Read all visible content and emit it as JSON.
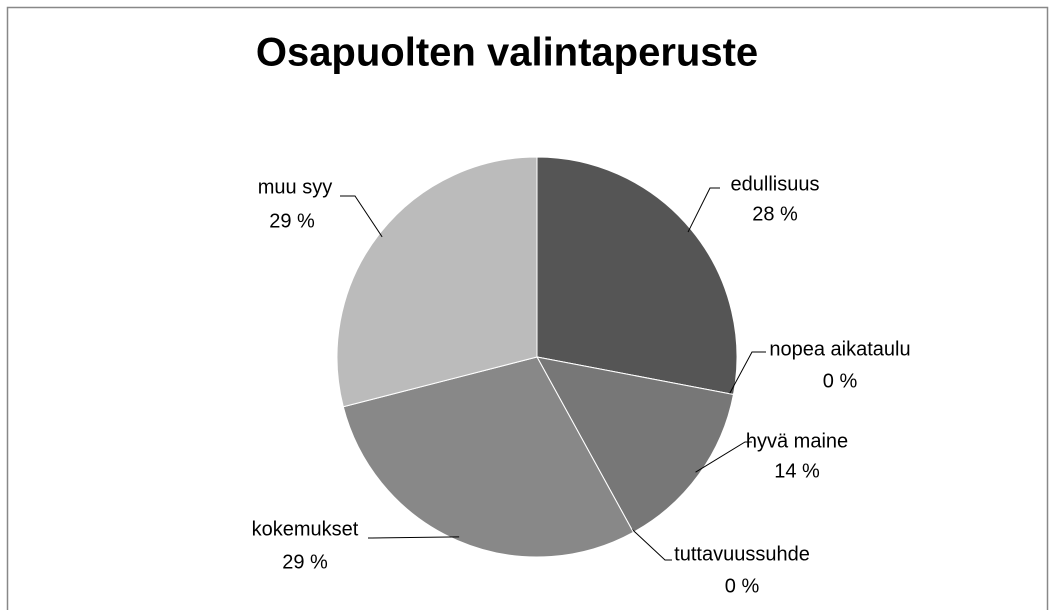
{
  "chart_data": {
    "type": "pie",
    "title": "Osapuolten valintaperuste",
    "categories": [
      "edullisuus",
      "nopea aikataulu",
      "hyvä maine",
      "tuttavuussuhde",
      "kokemukset",
      "muu syy"
    ],
    "values": [
      28,
      0,
      14,
      0,
      29,
      29
    ],
    "value_labels": [
      "28 %",
      "0 %",
      "14 %",
      "0 %",
      "29 %",
      "29 %"
    ],
    "colors": [
      "#555555",
      "#666666",
      "#777777",
      "#808080",
      "#888888",
      "#bbbbbb"
    ]
  }
}
